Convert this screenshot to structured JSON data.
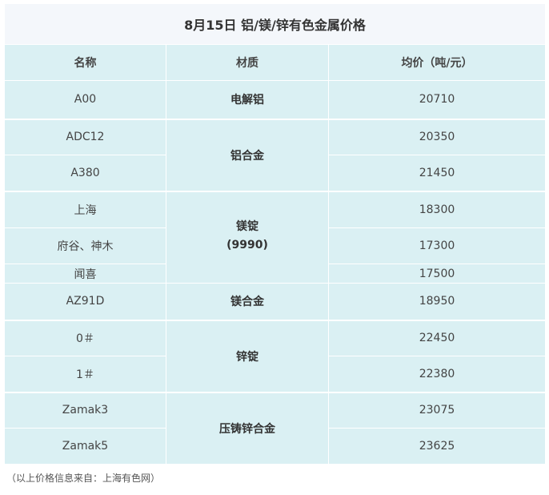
{
  "title": "8月15日 铝/镁/锌有色金属价格",
  "headers": [
    "名称",
    "材质",
    "均价（吨/元）"
  ],
  "rows": [
    {
      "name": "A00",
      "price": "20710"
    },
    {
      "name": "ADC12",
      "price": "20350"
    },
    {
      "name": "A380",
      "price": "21450"
    },
    {
      "name": "上海",
      "price": "18300"
    },
    {
      "name": "府谷、神木",
      "price": "17300"
    },
    {
      "name": "闻喜",
      "price": "17500"
    },
    {
      "name": "AZ91D",
      "price": "18950"
    },
    {
      "name": "0＃",
      "price": "22450"
    },
    {
      "name": "1＃",
      "price": "22380"
    },
    {
      "name": "Zamak3",
      "price": "23075"
    },
    {
      "name": "Zamak5",
      "price": "23625"
    }
  ],
  "materials": [
    "电解铝",
    "铝合金",
    "镁锭",
    "(9990)",
    "镁合金",
    "锌锭",
    "压铸锌合金"
  ],
  "footnote": "（以上价格信息来自：上海有色网）"
}
